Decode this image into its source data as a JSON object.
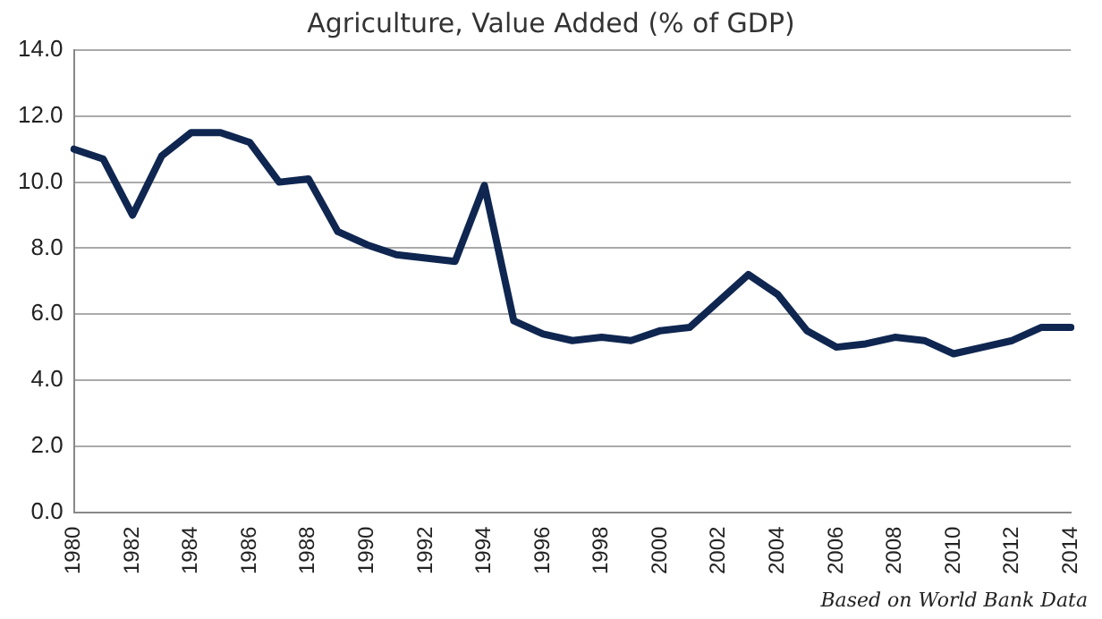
{
  "chart_data": {
    "type": "line",
    "title": "Agriculture, Value Added (% of GDP)",
    "categories": [
      "1980",
      null,
      "1982",
      null,
      "1984",
      null,
      "1986",
      null,
      "1988",
      null,
      "1990",
      null,
      "1992",
      null,
      "1994",
      null,
      "1996",
      null,
      "1998",
      null,
      "2000",
      null,
      "2002",
      null,
      "2004",
      null,
      "2006",
      null,
      "2008",
      null,
      "2010",
      null,
      "2012",
      null,
      "2014"
    ],
    "series": [
      {
        "color": "#0f2650",
        "values": [
          11.0,
          10.7,
          9.0,
          10.8,
          11.5,
          11.5,
          11.2,
          10.0,
          10.1,
          8.5,
          8.1,
          7.8,
          7.7,
          7.6,
          9.9,
          5.8,
          5.4,
          5.2,
          5.3,
          5.2,
          5.5,
          5.6,
          6.4,
          7.2,
          6.6,
          5.5,
          5.0,
          5.1,
          5.3,
          5.2,
          4.8,
          5.0,
          5.2,
          5.6,
          5.6
        ]
      }
    ],
    "ylim": [
      0,
      14
    ],
    "yticks": [
      {
        "value": 0,
        "label": "0.0"
      },
      {
        "value": 2,
        "label": "2.0"
      },
      {
        "value": 4,
        "label": "4.0"
      },
      {
        "value": 6,
        "label": "6.0"
      },
      {
        "value": 8,
        "label": "8.0"
      },
      {
        "value": 10,
        "label": "10.0"
      },
      {
        "value": 12,
        "label": "12.0"
      },
      {
        "value": 14,
        "label": "14.0"
      }
    ],
    "grid": "y",
    "marker": "none",
    "line_style": "solid",
    "annotations": [
      "Based on World Bank Data"
    ]
  }
}
